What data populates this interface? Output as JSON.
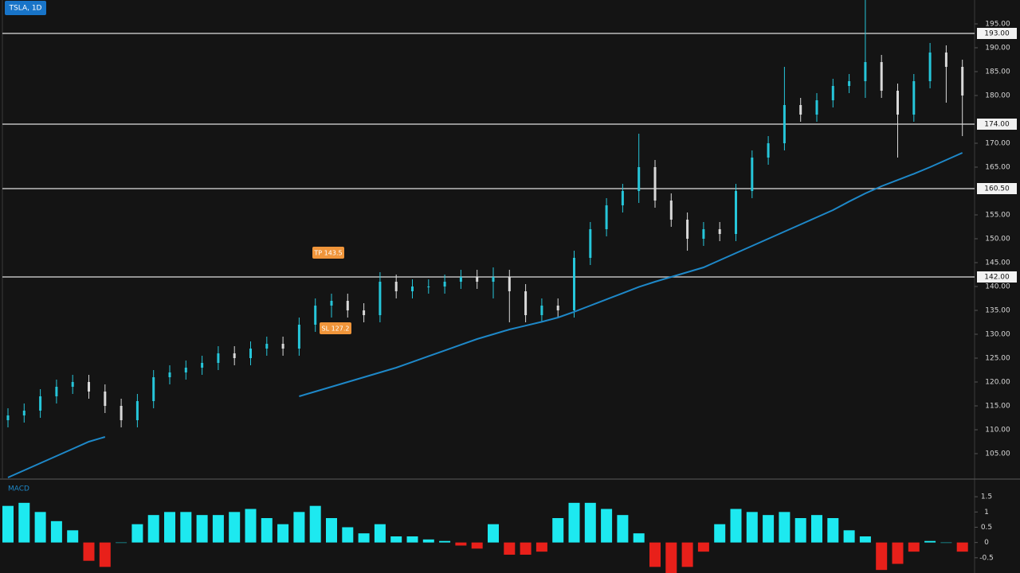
{
  "chart_data": [
    {
      "type": "candlestick",
      "title": "TSLA, 1D",
      "open": [
        112,
        113,
        114,
        117,
        119,
        120,
        118,
        115,
        112,
        116,
        121,
        122,
        123,
        124,
        126,
        125,
        127,
        128,
        127,
        132,
        136,
        137,
        135,
        134,
        141,
        139,
        140,
        140,
        141,
        142,
        141,
        142,
        139,
        134,
        136,
        135,
        146,
        152,
        157,
        160,
        165,
        158,
        154,
        150,
        152,
        151,
        160,
        167,
        170,
        178,
        176,
        179,
        182,
        183,
        187,
        181,
        176,
        183,
        189,
        186
      ],
      "high": [
        114.5,
        115.5,
        118.5,
        120.5,
        121.5,
        121.5,
        119.5,
        116.5,
        117.5,
        122.5,
        123.5,
        124.5,
        125.5,
        127.5,
        127.5,
        128.5,
        129.5,
        129.5,
        133.5,
        137.5,
        138.5,
        138.5,
        136.5,
        143,
        142.5,
        141.5,
        141.5,
        142.5,
        143.5,
        143.5,
        144,
        143.5,
        140.5,
        137.5,
        137.5,
        147.5,
        153.5,
        158.5,
        161.5,
        172,
        166.5,
        159.5,
        155.5,
        153.5,
        153.5,
        161.5,
        168.5,
        171.5,
        186,
        179.5,
        180.5,
        183.5,
        184.5,
        200,
        188.5,
        182.5,
        184.5,
        191,
        190.5,
        187.5
      ],
      "low": [
        110.5,
        111.5,
        112.5,
        115.5,
        117.5,
        116.5,
        113.5,
        110.5,
        110.5,
        114.5,
        119.5,
        120.5,
        121.5,
        122.5,
        123.5,
        123.5,
        125.5,
        125.5,
        125.5,
        130.5,
        133.5,
        133.5,
        132.5,
        132.5,
        137.5,
        137.5,
        138.5,
        138.5,
        139.5,
        139.5,
        137.5,
        132.5,
        132.5,
        132.5,
        133.5,
        133.5,
        144.5,
        150.5,
        155.5,
        157.5,
        156.5,
        152.5,
        147.5,
        148.5,
        149.5,
        149.5,
        158.5,
        165.5,
        168.5,
        174.5,
        174.5,
        177.5,
        180.5,
        179.5,
        179.5,
        167,
        174.5,
        181.5,
        178.5,
        171.5
      ],
      "close": [
        113,
        114,
        117,
        119,
        120,
        118,
        115,
        112,
        116,
        121,
        122,
        123,
        124,
        126,
        125,
        127,
        128,
        127,
        132,
        136,
        137,
        135,
        134,
        141,
        139,
        140,
        140,
        141,
        142,
        141,
        142,
        139,
        134,
        136,
        135,
        146,
        152,
        157,
        160,
        165,
        158,
        154,
        150,
        152,
        151,
        160,
        167,
        170,
        178,
        176,
        179,
        182,
        183,
        187,
        181,
        176,
        183,
        189,
        186,
        180
      ],
      "ma": [
        100,
        101.5,
        103,
        104.5,
        106,
        107.5,
        108.5,
        null,
        null,
        null,
        null,
        null,
        null,
        null,
        null,
        null,
        null,
        null,
        117,
        118,
        119,
        120,
        121,
        122,
        123,
        124.2,
        125.4,
        126.6,
        127.8,
        129,
        130,
        131,
        131.8,
        132.6,
        133.5,
        134.7,
        136,
        137.3,
        138.6,
        139.9,
        141,
        142,
        143,
        144,
        145.5,
        147,
        148.5,
        150,
        151.5,
        153,
        154.5,
        156,
        157.8,
        159.5,
        161,
        162.3,
        163.6,
        165,
        166.5,
        168
      ],
      "up_color": "#26c6da",
      "down_color": "#d9d9d9",
      "ma_color": "#1e88c8",
      "ylim": [
        100,
        200
      ],
      "yticks": [
        {
          "value": 105,
          "label": "105.00"
        },
        {
          "value": 110,
          "label": "110.00"
        },
        {
          "value": 115,
          "label": "115.00"
        },
        {
          "value": 120,
          "label": "120.00"
        },
        {
          "value": 125,
          "label": "125.00"
        },
        {
          "value": 130,
          "label": "130.00"
        },
        {
          "value": 135,
          "label": "135.00"
        },
        {
          "value": 140,
          "label": "140.00"
        },
        {
          "value": 145,
          "label": "145.00"
        },
        {
          "value": 150,
          "label": "150.00"
        },
        {
          "value": 155,
          "label": "155.00"
        },
        {
          "value": 165,
          "label": "165.00"
        },
        {
          "value": 170,
          "label": "170.00"
        },
        {
          "value": 180,
          "label": "180.00"
        },
        {
          "value": 185,
          "label": "185.00"
        },
        {
          "value": 190,
          "label": "190.00"
        },
        {
          "value": 195,
          "label": "195.00"
        }
      ],
      "levels": [
        {
          "value": 193,
          "label": "193.00"
        },
        {
          "value": 174,
          "label": "174.00"
        },
        {
          "value": 160.5,
          "label": "160.50"
        },
        {
          "value": 142,
          "label": "142.00"
        }
      ],
      "annotations": [
        "TP 143.5",
        "SL 127.2"
      ]
    },
    {
      "type": "bar",
      "title": "MACD",
      "values": [
        1.2,
        1.3,
        1.0,
        0.7,
        0.4,
        -0.6,
        -0.8,
        0,
        0.6,
        0.9,
        1.0,
        1.0,
        0.9,
        0.9,
        1.0,
        1.1,
        0.8,
        0.6,
        1.0,
        1.2,
        0.8,
        0.5,
        0.3,
        0.6,
        0.2,
        0.2,
        0.1,
        0.05,
        -0.1,
        -0.2,
        0.6,
        -0.4,
        -0.4,
        -0.3,
        0.8,
        1.3,
        1.3,
        1.1,
        0.9,
        0.3,
        -0.8,
        -1.0,
        -0.8,
        -0.3,
        0.6,
        1.1,
        1.0,
        0.9,
        1.0,
        0.8,
        0.9,
        0.8,
        0.4,
        0.2,
        -0.9,
        -0.7,
        -0.3,
        0.05,
        0.0,
        -0.3
      ],
      "up_color": "#1de9f0",
      "down_color": "#e8201a",
      "ylim": [
        -1,
        2
      ],
      "yticks": [
        -0.5,
        0,
        0.5,
        1,
        1.5
      ]
    }
  ]
}
